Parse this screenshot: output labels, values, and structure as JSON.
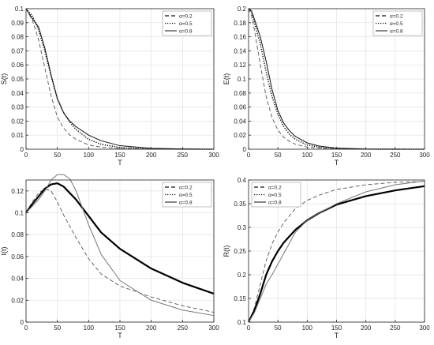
{
  "chart_data": [
    {
      "type": "line",
      "ylabel": "S(t)",
      "xlabel": "T",
      "xlim": [
        0,
        300
      ],
      "ylim": [
        0,
        0.1
      ],
      "xticks": [
        0,
        50,
        100,
        150,
        200,
        250,
        300
      ],
      "yticks": [
        0,
        0.01,
        0.02,
        0.03,
        0.04,
        0.05,
        0.06,
        0.07,
        0.08,
        0.09,
        0.1
      ],
      "ytick_labels": [
        "0",
        "0.01",
        "0.02",
        "0.03",
        "0.04",
        "0.05",
        "0.06",
        "0.07",
        "0.08",
        "0.09",
        "0.1"
      ],
      "grid": true,
      "legend_position": "top-right",
      "series": [
        {
          "name": "α=0.2",
          "style": "dashed",
          "x": [
            0,
            10,
            20,
            30,
            40,
            50,
            60,
            70,
            80,
            100,
            120,
            150,
            200,
            250,
            300
          ],
          "y": [
            0.1,
            0.092,
            0.078,
            0.058,
            0.038,
            0.023,
            0.015,
            0.01,
            0.007,
            0.003,
            0.0015,
            0.0005,
            0.0001,
            0,
            0
          ]
        },
        {
          "name": "α=0.5",
          "style": "dotted",
          "x": [
            0,
            10,
            20,
            30,
            40,
            50,
            60,
            70,
            80,
            100,
            120,
            150,
            200,
            250,
            300
          ],
          "y": [
            0.1,
            0.095,
            0.085,
            0.07,
            0.052,
            0.036,
            0.026,
            0.019,
            0.014,
            0.007,
            0.0035,
            0.0012,
            0.0003,
            0.0001,
            0
          ]
        },
        {
          "name": "α=0.8",
          "style": "solid",
          "x": [
            0,
            10,
            20,
            30,
            40,
            50,
            60,
            70,
            80,
            100,
            120,
            150,
            200,
            250,
            300
          ],
          "y": [
            0.1,
            0.093,
            0.087,
            0.072,
            0.053,
            0.036,
            0.026,
            0.02,
            0.016,
            0.01,
            0.006,
            0.0025,
            0.0006,
            0.0002,
            0
          ]
        }
      ]
    },
    {
      "type": "line",
      "ylabel": "E(t)",
      "xlabel": "T",
      "xlim": [
        0,
        300
      ],
      "ylim": [
        0,
        0.2
      ],
      "xticks": [
        0,
        50,
        100,
        150,
        200,
        250,
        300
      ],
      "yticks": [
        0,
        0.02,
        0.04,
        0.06,
        0.08,
        0.1,
        0.12,
        0.14,
        0.16,
        0.18,
        0.2
      ],
      "ytick_labels": [
        "0",
        "0.02",
        "0.04",
        "0.06",
        "0.08",
        "0.1",
        "0.12",
        "0.14",
        "0.16",
        "0.18",
        "0.2"
      ],
      "grid": true,
      "legend_position": "top-right",
      "series": [
        {
          "name": "α=0.2",
          "style": "dashed",
          "x": [
            0,
            5,
            10,
            20,
            30,
            40,
            50,
            60,
            70,
            80,
            100,
            120,
            150,
            200,
            250,
            300
          ],
          "y": [
            0.2,
            0.19,
            0.17,
            0.12,
            0.075,
            0.045,
            0.027,
            0.017,
            0.011,
            0.007,
            0.003,
            0.0015,
            0.0005,
            0.0001,
            0,
            0
          ]
        },
        {
          "name": "α=0.5",
          "style": "dotted",
          "x": [
            0,
            5,
            10,
            20,
            30,
            40,
            50,
            60,
            70,
            80,
            100,
            120,
            150,
            200,
            250,
            300
          ],
          "y": [
            0.2,
            0.195,
            0.18,
            0.15,
            0.11,
            0.075,
            0.05,
            0.032,
            0.021,
            0.014,
            0.006,
            0.003,
            0.001,
            0.0002,
            0,
            0
          ]
        },
        {
          "name": "α=0.8",
          "style": "solid",
          "x": [
            0,
            5,
            10,
            20,
            30,
            40,
            50,
            60,
            70,
            80,
            100,
            120,
            150,
            200,
            250,
            300
          ],
          "y": [
            0.2,
            0.197,
            0.185,
            0.16,
            0.125,
            0.085,
            0.055,
            0.037,
            0.026,
            0.018,
            0.009,
            0.0045,
            0.0015,
            0.0003,
            0.0001,
            0
          ]
        }
      ]
    },
    {
      "type": "line",
      "ylabel": "I(t)",
      "xlabel": "T",
      "xlim": [
        0,
        300
      ],
      "ylim": [
        0,
        0.13
      ],
      "xticks": [
        0,
        50,
        100,
        150,
        200,
        250,
        300
      ],
      "yticks": [
        0,
        0.02,
        0.04,
        0.06,
        0.08,
        0.1,
        0.12
      ],
      "ytick_labels": [
        "0",
        "0.02",
        "0.04",
        "0.06",
        "0.08",
        "0.1",
        "0.12"
      ],
      "grid": true,
      "legend_position": "top-right",
      "series": [
        {
          "name": "α=0.2",
          "style": "dashed",
          "x": [
            0,
            10,
            20,
            30,
            40,
            50,
            60,
            80,
            100,
            120,
            150,
            200,
            250,
            300
          ],
          "y": [
            0.1,
            0.11,
            0.118,
            0.122,
            0.12,
            0.11,
            0.098,
            0.077,
            0.058,
            0.044,
            0.033,
            0.023,
            0.015,
            0.009
          ]
        },
        {
          "name": "α=0.5",
          "style": "dotted",
          "x": [
            0,
            10,
            20,
            30,
            40,
            50,
            60,
            80,
            100,
            120,
            150,
            200,
            250,
            300
          ],
          "y": [
            0.1,
            0.108,
            0.115,
            0.122,
            0.126,
            0.127,
            0.124,
            0.112,
            0.097,
            0.082,
            0.067,
            0.049,
            0.036,
            0.026
          ]
        },
        {
          "name": "α=0.8",
          "style": "solid",
          "x": [
            0,
            10,
            20,
            30,
            40,
            50,
            60,
            70,
            80,
            100,
            120,
            150,
            200,
            250,
            300
          ],
          "y": [
            0.1,
            0.106,
            0.112,
            0.12,
            0.13,
            0.135,
            0.135,
            0.131,
            0.12,
            0.089,
            0.062,
            0.038,
            0.02,
            0.011,
            0.006
          ]
        }
      ]
    },
    {
      "type": "line",
      "ylabel": "R(t)",
      "xlabel": "T",
      "xlim": [
        0,
        300
      ],
      "ylim": [
        0.1,
        0.4
      ],
      "xticks": [
        0,
        50,
        100,
        150,
        200,
        250,
        300
      ],
      "yticks": [
        0.1,
        0.15,
        0.2,
        0.25,
        0.3,
        0.35,
        0.4
      ],
      "ytick_labels": [
        "0.1",
        "0.15",
        "0.2",
        "0.25",
        "0.3",
        "0.35",
        "0.4"
      ],
      "grid": true,
      "legend_position": "top-left",
      "series": [
        {
          "name": "α=0.2",
          "style": "dashed",
          "x": [
            0,
            10,
            20,
            30,
            40,
            50,
            60,
            80,
            100,
            120,
            150,
            200,
            250,
            300
          ],
          "y": [
            0.1,
            0.13,
            0.18,
            0.23,
            0.265,
            0.29,
            0.31,
            0.34,
            0.357,
            0.368,
            0.38,
            0.39,
            0.395,
            0.397
          ]
        },
        {
          "name": "α=0.5",
          "style": "dotted",
          "x": [
            0,
            10,
            20,
            30,
            40,
            50,
            60,
            80,
            100,
            120,
            150,
            200,
            250,
            300
          ],
          "y": [
            0.1,
            0.125,
            0.16,
            0.2,
            0.228,
            0.25,
            0.268,
            0.295,
            0.315,
            0.33,
            0.348,
            0.366,
            0.378,
            0.387
          ]
        },
        {
          "name": "α=0.8",
          "style": "solid",
          "x": [
            0,
            10,
            20,
            30,
            40,
            50,
            60,
            80,
            100,
            120,
            150,
            200,
            250,
            300
          ],
          "y": [
            0.1,
            0.12,
            0.15,
            0.18,
            0.2,
            0.222,
            0.245,
            0.29,
            0.315,
            0.33,
            0.35,
            0.375,
            0.39,
            0.398
          ]
        }
      ]
    }
  ]
}
